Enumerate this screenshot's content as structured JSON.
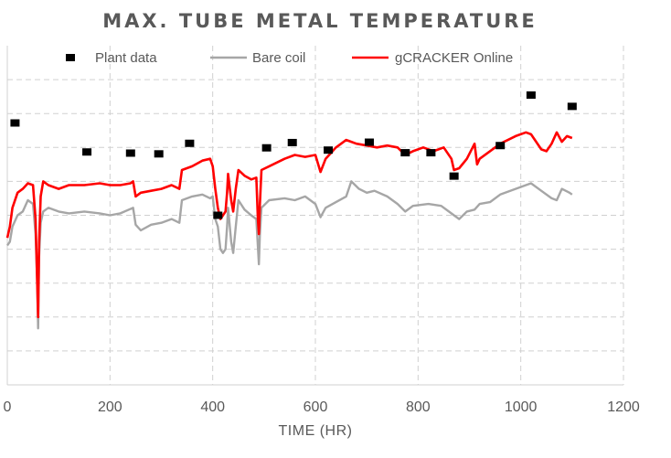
{
  "chart_data": {
    "type": "line",
    "title": "MAX. TUBE METAL TEMPERATURE",
    "xlabel": "TIME (HR)",
    "ylabel": "",
    "xlim": [
      0,
      1200
    ],
    "x_ticks": [
      0,
      200,
      400,
      600,
      800,
      1000,
      1200
    ],
    "grid": "dashed",
    "legend_position": "top",
    "series": [
      {
        "name": "Plant data",
        "kind": "markers",
        "color": "#000000",
        "points": [
          [
            15,
            69.5
          ],
          [
            155,
            61.8
          ],
          [
            240,
            61.5
          ],
          [
            295,
            61.3
          ],
          [
            355,
            64.1
          ],
          [
            410,
            45
          ],
          [
            505,
            62.9
          ],
          [
            555,
            64.3
          ],
          [
            625,
            62.3
          ],
          [
            705,
            64.4
          ],
          [
            775,
            61.6
          ],
          [
            825,
            61.6
          ],
          [
            870,
            55.4
          ],
          [
            960,
            63.5
          ],
          [
            1020,
            76.9
          ],
          [
            1100,
            73.9
          ]
        ]
      },
      {
        "name": "Bare coil",
        "kind": "line",
        "color": "#a6a6a6",
        "points": [
          [
            0,
            37
          ],
          [
            5,
            38
          ],
          [
            10,
            42
          ],
          [
            20,
            45
          ],
          [
            30,
            46
          ],
          [
            40,
            49
          ],
          [
            50,
            48
          ],
          [
            55,
            40
          ],
          [
            58,
            28
          ],
          [
            60,
            15
          ],
          [
            62,
            34
          ],
          [
            65,
            43
          ],
          [
            70,
            46
          ],
          [
            80,
            47
          ],
          [
            100,
            46
          ],
          [
            120,
            45.5
          ],
          [
            150,
            46
          ],
          [
            180,
            45.5
          ],
          [
            200,
            45
          ],
          [
            220,
            45.5
          ],
          [
            245,
            47
          ],
          [
            250,
            42.5
          ],
          [
            260,
            41
          ],
          [
            280,
            42.5
          ],
          [
            300,
            43
          ],
          [
            320,
            44
          ],
          [
            335,
            43
          ],
          [
            340,
            49
          ],
          [
            360,
            50
          ],
          [
            380,
            50.5
          ],
          [
            395,
            49.5
          ],
          [
            400,
            50
          ],
          [
            405,
            44
          ],
          [
            410,
            42
          ],
          [
            415,
            36
          ],
          [
            420,
            35
          ],
          [
            425,
            36
          ],
          [
            428,
            42
          ],
          [
            430,
            47
          ],
          [
            436,
            38
          ],
          [
            440,
            35
          ],
          [
            445,
            42
          ],
          [
            450,
            49
          ],
          [
            462,
            46.5
          ],
          [
            475,
            45
          ],
          [
            485,
            44
          ],
          [
            490,
            32
          ],
          [
            492,
            40
          ],
          [
            495,
            47
          ],
          [
            510,
            49
          ],
          [
            540,
            49.5
          ],
          [
            560,
            49
          ],
          [
            580,
            50
          ],
          [
            600,
            48
          ],
          [
            610,
            44.5
          ],
          [
            620,
            47
          ],
          [
            640,
            48.5
          ],
          [
            660,
            50
          ],
          [
            670,
            54
          ],
          [
            685,
            52
          ],
          [
            700,
            51
          ],
          [
            715,
            51.5
          ],
          [
            740,
            50
          ],
          [
            760,
            48
          ],
          [
            775,
            46
          ],
          [
            790,
            47.5
          ],
          [
            820,
            48
          ],
          [
            845,
            47.5
          ],
          [
            860,
            46
          ],
          [
            870,
            45
          ],
          [
            880,
            44
          ],
          [
            895,
            46
          ],
          [
            910,
            46.5
          ],
          [
            920,
            48
          ],
          [
            940,
            48.5
          ],
          [
            960,
            50.5
          ],
          [
            990,
            52
          ],
          [
            1010,
            53
          ],
          [
            1020,
            53.5
          ],
          [
            1040,
            51.5
          ],
          [
            1060,
            49.5
          ],
          [
            1070,
            49
          ],
          [
            1080,
            52
          ],
          [
            1095,
            51
          ],
          [
            1100,
            50.5
          ]
        ]
      },
      {
        "name": "gCRACKER Online",
        "kind": "line",
        "color": "#ff0000",
        "points": [
          [
            0,
            39
          ],
          [
            5,
            42
          ],
          [
            10,
            47
          ],
          [
            20,
            51
          ],
          [
            30,
            52
          ],
          [
            40,
            53.5
          ],
          [
            50,
            53
          ],
          [
            55,
            44
          ],
          [
            58,
            28
          ],
          [
            60,
            18
          ],
          [
            62,
            38
          ],
          [
            65,
            50
          ],
          [
            70,
            54
          ],
          [
            80,
            53
          ],
          [
            100,
            52
          ],
          [
            120,
            53
          ],
          [
            150,
            53
          ],
          [
            180,
            53.5
          ],
          [
            200,
            53
          ],
          [
            220,
            53
          ],
          [
            240,
            53.5
          ],
          [
            245,
            54
          ],
          [
            250,
            50
          ],
          [
            260,
            51
          ],
          [
            280,
            51.5
          ],
          [
            300,
            52
          ],
          [
            320,
            53
          ],
          [
            335,
            52
          ],
          [
            340,
            57
          ],
          [
            360,
            58
          ],
          [
            380,
            59.5
          ],
          [
            395,
            60
          ],
          [
            400,
            58
          ],
          [
            405,
            52
          ],
          [
            410,
            47
          ],
          [
            415,
            44
          ],
          [
            420,
            45
          ],
          [
            425,
            46
          ],
          [
            428,
            51
          ],
          [
            430,
            56
          ],
          [
            436,
            49
          ],
          [
            440,
            46
          ],
          [
            445,
            52
          ],
          [
            450,
            57
          ],
          [
            462,
            55.5
          ],
          [
            475,
            54.5
          ],
          [
            485,
            55
          ],
          [
            488,
            44
          ],
          [
            490,
            40
          ],
          [
            492,
            48
          ],
          [
            495,
            57
          ],
          [
            510,
            58
          ],
          [
            540,
            60
          ],
          [
            560,
            61
          ],
          [
            580,
            60.5
          ],
          [
            600,
            61
          ],
          [
            610,
            56.5
          ],
          [
            620,
            60
          ],
          [
            640,
            63
          ],
          [
            660,
            65
          ],
          [
            680,
            64
          ],
          [
            700,
            63.5
          ],
          [
            720,
            63
          ],
          [
            740,
            63.5
          ],
          [
            760,
            63
          ],
          [
            775,
            61
          ],
          [
            790,
            62
          ],
          [
            810,
            63
          ],
          [
            830,
            62
          ],
          [
            850,
            63
          ],
          [
            865,
            60
          ],
          [
            870,
            57
          ],
          [
            880,
            57.5
          ],
          [
            895,
            60
          ],
          [
            910,
            64
          ],
          [
            915,
            58.5
          ],
          [
            920,
            60
          ],
          [
            940,
            62
          ],
          [
            960,
            64
          ],
          [
            990,
            66
          ],
          [
            1010,
            67
          ],
          [
            1020,
            66.5
          ],
          [
            1040,
            62.5
          ],
          [
            1050,
            62
          ],
          [
            1060,
            64
          ],
          [
            1070,
            67
          ],
          [
            1080,
            64.5
          ],
          [
            1090,
            66
          ],
          [
            1100,
            65.5
          ]
        ]
      }
    ]
  }
}
